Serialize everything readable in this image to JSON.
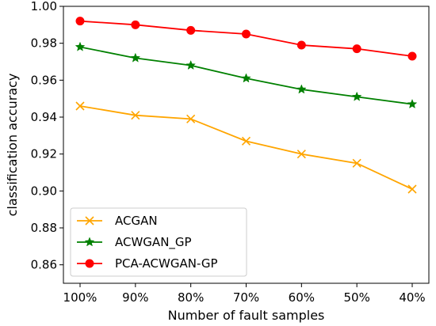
{
  "chart_data": {
    "type": "line",
    "title": "",
    "xlabel": "Number of fault samples",
    "ylabel": "classification accuracy",
    "categories": [
      "100%",
      "90%",
      "80%",
      "70%",
      "60%",
      "50%",
      "40%"
    ],
    "ylim": [
      0.85,
      1.0
    ],
    "yticks": [
      "0.86",
      "0.88",
      "0.90",
      "0.92",
      "0.94",
      "0.96",
      "0.98",
      "1.00"
    ],
    "grid": false,
    "legend_position": "bottom-left",
    "series": [
      {
        "name": "ACGAN",
        "color": "#FFA500",
        "marker": "x",
        "values": [
          0.946,
          0.941,
          0.939,
          0.927,
          0.92,
          0.915,
          0.901
        ]
      },
      {
        "name": "ACWGAN_GP",
        "color": "#008000",
        "marker": "star",
        "values": [
          0.978,
          0.972,
          0.968,
          0.961,
          0.955,
          0.951,
          0.947
        ]
      },
      {
        "name": "PCA-ACWGAN-GP",
        "color": "#FF0000",
        "marker": "circle",
        "values": [
          0.992,
          0.99,
          0.987,
          0.985,
          0.979,
          0.977,
          0.973
        ]
      }
    ]
  }
}
